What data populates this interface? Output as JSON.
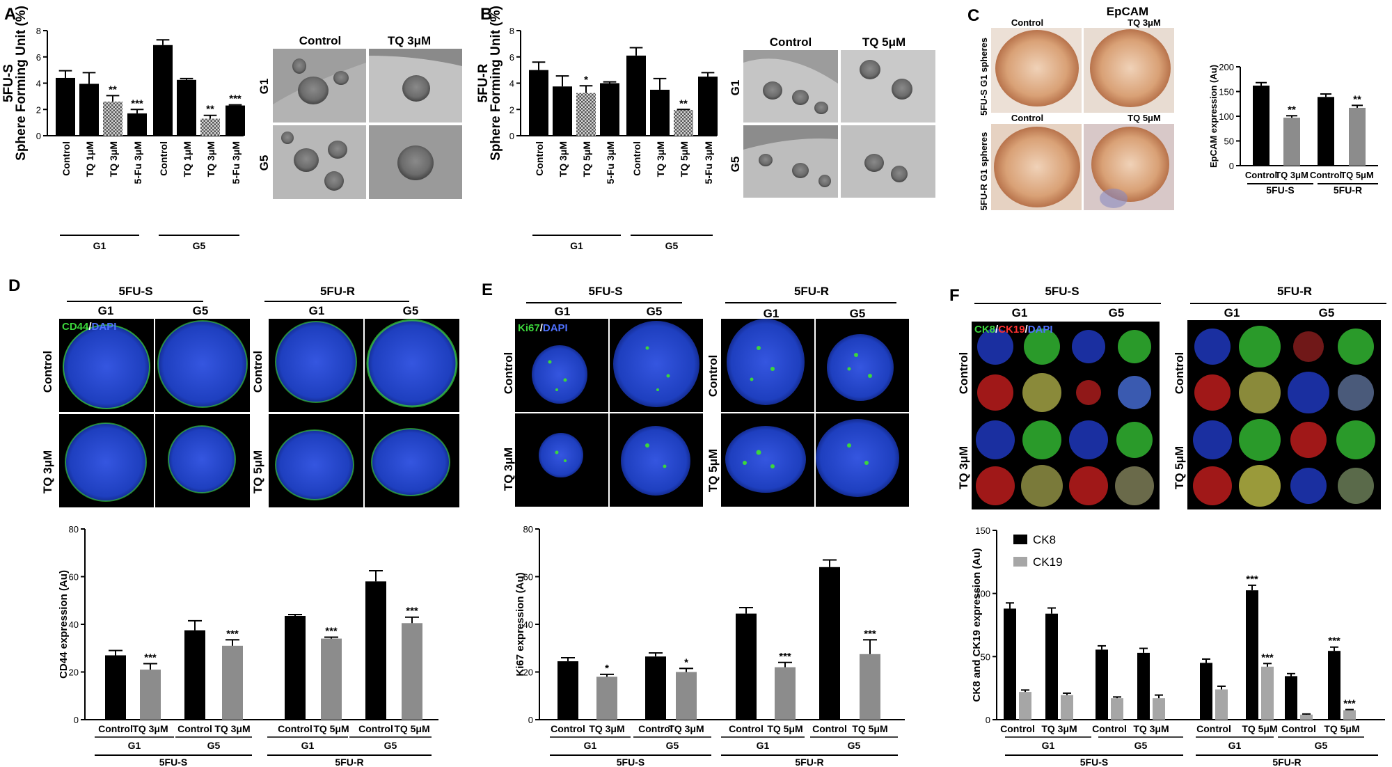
{
  "panels": {
    "A": {
      "label": "A",
      "image_headers": [
        "Control",
        "TQ 3μM"
      ],
      "image_rows": [
        "G1",
        "G5"
      ],
      "chart_groups": [
        "G1",
        "G5"
      ],
      "ylabel_line1": "5FU-S",
      "ylabel_line2": "Sphere Forming Unit (%)"
    },
    "B": {
      "label": "B",
      "image_headers": [
        "Control",
        "TQ 5μM"
      ],
      "image_rows": [
        "G1",
        "G5"
      ],
      "chart_groups": [
        "G1",
        "G5"
      ],
      "ylabel_line1": "5FU-R",
      "ylabel_line2": "Sphere Forming Unit (%)"
    },
    "C": {
      "label": "C",
      "title": "EpCAM",
      "top_headers": [
        "Control",
        "TQ 3μM"
      ],
      "bottom_headers": [
        "Control",
        "TQ 5μM"
      ],
      "row_labels": [
        "5FU-S G1 spheres",
        "5FU-R G1 spheres"
      ],
      "chart_groups": [
        "5FU-S",
        "5FU-R"
      ],
      "ylabel": "EpCAM expression (Au)"
    },
    "D": {
      "label": "D",
      "groups": [
        "5FU-S",
        "5FU-R"
      ],
      "subgroups": [
        "G1",
        "G5",
        "G1",
        "G5"
      ],
      "row_labels_left": [
        "Control",
        "TQ 3μM"
      ],
      "row_labels_right": [
        "Control",
        "TQ 5μM"
      ],
      "stain_green": "CD44",
      "stain_sep": "/",
      "stain_blue": "DAPI",
      "ylabel": "CD44 expression (Au)",
      "chart_subgroups": [
        "G1",
        "G5",
        "G1",
        "G5"
      ],
      "chart_groups": [
        "5FU-S",
        "5FU-R"
      ]
    },
    "E": {
      "label": "E",
      "groups": [
        "5FU-S",
        "5FU-R"
      ],
      "subgroups": [
        "G1",
        "G5",
        "G1",
        "G5"
      ],
      "row_labels_left": [
        "Control",
        "TQ 3μM"
      ],
      "row_labels_right": [
        "Control",
        "TQ 5μM"
      ],
      "stain_green": "Ki67",
      "stain_sep": "/",
      "stain_blue": "DAPI",
      "ylabel": "Ki67 expression (Au)",
      "chart_subgroups": [
        "G1",
        "G5",
        "G1",
        "G5"
      ],
      "chart_groups": [
        "5FU-S",
        "5FU-R"
      ]
    },
    "F": {
      "label": "F",
      "groups": [
        "5FU-S",
        "5FU-R"
      ],
      "subgroups": [
        "G1",
        "G5",
        "G1",
        "G5"
      ],
      "row_labels_left": [
        "Control",
        "TQ 3μM"
      ],
      "row_labels_right": [
        "Control",
        "TQ 5μM"
      ],
      "stain_green": "CK8",
      "stain_sep1": "/",
      "stain_red": "CK19",
      "stain_sep2": "/",
      "stain_blue": "DAPI",
      "ylabel": "CK8 and CK19 expression (Au)",
      "chart_subgroups": [
        "G1",
        "G5",
        "G1",
        "G5"
      ],
      "chart_groups": [
        "5FU-S",
        "5FU-R"
      ]
    }
  },
  "colors": {
    "black_bar": "#000000",
    "gray_bar": "#8c8c8c",
    "light_gray_bar": "#a6a6a6",
    "hatched_bar": "#777777",
    "ihc_background": "#e9d9cf",
    "fluor_green": "#3cd63c",
    "fluor_blue": "#2a4dd6",
    "fluor_red": "#d02020"
  },
  "chart_data": [
    {
      "id": "A",
      "type": "bar",
      "ylabel": "Sphere Forming Unit (%)",
      "ylim": [
        0,
        8
      ],
      "yticks": [
        0,
        2,
        4,
        6,
        8
      ],
      "categories": [
        "Control",
        "TQ 1μM",
        "TQ 3μM",
        "5-Fu 3μM",
        "Control",
        "TQ 1μM",
        "TQ 3μM",
        "5-Fu 3μM"
      ],
      "values": [
        4.4,
        3.95,
        2.6,
        1.7,
        6.9,
        4.25,
        1.3,
        2.3
      ],
      "errors": [
        0.55,
        0.85,
        0.45,
        0.3,
        0.4,
        0.1,
        0.25,
        0.05
      ],
      "styles": [
        "solid",
        "solid",
        "hatched",
        "solid",
        "solid",
        "solid",
        "hatched",
        "solid"
      ],
      "significance": [
        "",
        "",
        "**",
        "***",
        "",
        "",
        "**",
        "***"
      ],
      "groups": [
        {
          "name": "G1",
          "span": [
            0,
            3
          ]
        },
        {
          "name": "G5",
          "span": [
            4,
            7
          ]
        }
      ]
    },
    {
      "id": "B",
      "type": "bar",
      "ylabel": "Sphere Forming Unit (%)",
      "ylim": [
        0,
        8
      ],
      "yticks": [
        0,
        2,
        4,
        6,
        8
      ],
      "categories": [
        "Control",
        "TQ 3μM",
        "TQ 5μM",
        "5-Fu 3μM",
        "Control",
        "TQ 3μM",
        "TQ 5μM",
        "5-Fu 3μM"
      ],
      "values": [
        5.0,
        3.75,
        3.25,
        4.0,
        6.1,
        3.5,
        1.95,
        4.5
      ],
      "errors": [
        0.6,
        0.8,
        0.55,
        0.1,
        0.6,
        0.85,
        0.05,
        0.3
      ],
      "styles": [
        "solid",
        "solid",
        "hatched",
        "solid",
        "solid",
        "solid",
        "hatched",
        "solid"
      ],
      "significance": [
        "",
        "",
        "*",
        "",
        "",
        "",
        "**",
        ""
      ],
      "groups": [
        {
          "name": "G1",
          "span": [
            0,
            3
          ]
        },
        {
          "name": "G5",
          "span": [
            4,
            7
          ]
        }
      ]
    },
    {
      "id": "C",
      "type": "bar",
      "ylabel": "EpCAM expression (Au)",
      "ylim": [
        0,
        200
      ],
      "yticks": [
        0,
        50,
        100,
        150,
        200
      ],
      "categories": [
        "Control",
        "TQ 3μM",
        "Control",
        "TQ 5μM"
      ],
      "values": [
        162,
        97,
        139,
        117
      ],
      "errors": [
        6,
        4,
        6,
        5
      ],
      "styles": [
        "black",
        "gray",
        "black",
        "gray"
      ],
      "significance": [
        "",
        "**",
        "",
        "**"
      ],
      "groups": [
        {
          "name": "5FU-S",
          "span": [
            0,
            1
          ]
        },
        {
          "name": "5FU-R",
          "span": [
            2,
            3
          ]
        }
      ]
    },
    {
      "id": "D",
      "type": "bar",
      "ylabel": "CD44 expression (Au)",
      "ylim": [
        0,
        80
      ],
      "yticks": [
        0,
        20,
        40,
        60,
        80
      ],
      "categories": [
        "Control",
        "TQ 3μM",
        "Control",
        "TQ 3μM",
        "Control",
        "TQ 5μM",
        "Control",
        "TQ 5μM"
      ],
      "values": [
        27,
        21,
        37.5,
        31,
        43.5,
        34,
        58,
        40.5
      ],
      "errors": [
        2,
        2.5,
        4,
        2.5,
        0.6,
        0.6,
        4.5,
        2.5
      ],
      "styles": [
        "black",
        "gray",
        "black",
        "gray",
        "black",
        "gray",
        "black",
        "gray"
      ],
      "significance": [
        "",
        "***",
        "",
        "***",
        "",
        "***",
        "",
        "***"
      ],
      "subgroups": [
        {
          "name": "G1",
          "span": [
            0,
            1
          ]
        },
        {
          "name": "G5",
          "span": [
            2,
            3
          ]
        },
        {
          "name": "G1",
          "span": [
            4,
            5
          ]
        },
        {
          "name": "G5",
          "span": [
            6,
            7
          ]
        }
      ],
      "groups": [
        {
          "name": "5FU-S",
          "span": [
            0,
            3
          ]
        },
        {
          "name": "5FU-R",
          "span": [
            4,
            7
          ]
        }
      ]
    },
    {
      "id": "E",
      "type": "bar",
      "ylabel": "Ki67 expression (Au)",
      "ylim": [
        0,
        80
      ],
      "yticks": [
        0,
        20,
        40,
        60,
        80
      ],
      "categories": [
        "Control",
        "TQ 3μM",
        "Control",
        "TQ 3μM",
        "Control",
        "TQ 5μM",
        "Control",
        "TQ 5μM"
      ],
      "values": [
        24.5,
        18,
        26.5,
        20,
        44.5,
        22,
        64,
        27.5
      ],
      "errors": [
        1.5,
        1,
        1.5,
        1.5,
        2.5,
        2,
        3,
        6
      ],
      "styles": [
        "black",
        "gray",
        "black",
        "gray",
        "black",
        "gray",
        "black",
        "gray"
      ],
      "significance": [
        "",
        "*",
        "",
        "*",
        "",
        "***",
        "",
        "***"
      ],
      "subgroups": [
        {
          "name": "G1",
          "span": [
            0,
            1
          ]
        },
        {
          "name": "G5",
          "span": [
            2,
            3
          ]
        },
        {
          "name": "G1",
          "span": [
            4,
            5
          ]
        },
        {
          "name": "G5",
          "span": [
            6,
            7
          ]
        }
      ],
      "groups": [
        {
          "name": "5FU-S",
          "span": [
            0,
            3
          ]
        },
        {
          "name": "5FU-R",
          "span": [
            4,
            7
          ]
        }
      ]
    },
    {
      "id": "F",
      "type": "bar",
      "ylabel": "CK8 and CK19 expression (Au)",
      "ylim": [
        0,
        150
      ],
      "yticks": [
        0,
        50,
        100,
        150
      ],
      "legend_position": "top-left",
      "categories": [
        "Control",
        "TQ 3μM",
        "Control",
        "TQ 3μM",
        "Control",
        "TQ 5μM",
        "Control",
        "TQ 5μM"
      ],
      "series": [
        {
          "name": "CK8",
          "values": [
            88,
            84,
            55.5,
            53,
            45,
            102.5,
            34.5,
            54.5
          ],
          "errors": [
            4.5,
            4.5,
            3,
            3.5,
            3,
            4,
            2,
            3
          ],
          "significance": [
            "",
            "",
            "",
            "",
            "",
            "***",
            "",
            "***"
          ]
        },
        {
          "name": "CK19",
          "values": [
            22,
            19.5,
            17,
            17,
            24,
            42,
            4,
            7.5
          ],
          "errors": [
            1.5,
            1.5,
            1,
            2.5,
            2.5,
            2.5,
            0.5,
            0.5
          ],
          "significance": [
            "",
            "",
            "",
            "",
            "",
            "***",
            "",
            "***"
          ]
        }
      ],
      "subgroups": [
        {
          "name": "G1",
          "span": [
            0,
            1
          ]
        },
        {
          "name": "G5",
          "span": [
            2,
            3
          ]
        },
        {
          "name": "G1",
          "span": [
            4,
            5
          ]
        },
        {
          "name": "G5",
          "span": [
            6,
            7
          ]
        }
      ],
      "groups": [
        {
          "name": "5FU-S",
          "span": [
            0,
            3
          ]
        },
        {
          "name": "5FU-R",
          "span": [
            4,
            7
          ]
        }
      ]
    }
  ]
}
